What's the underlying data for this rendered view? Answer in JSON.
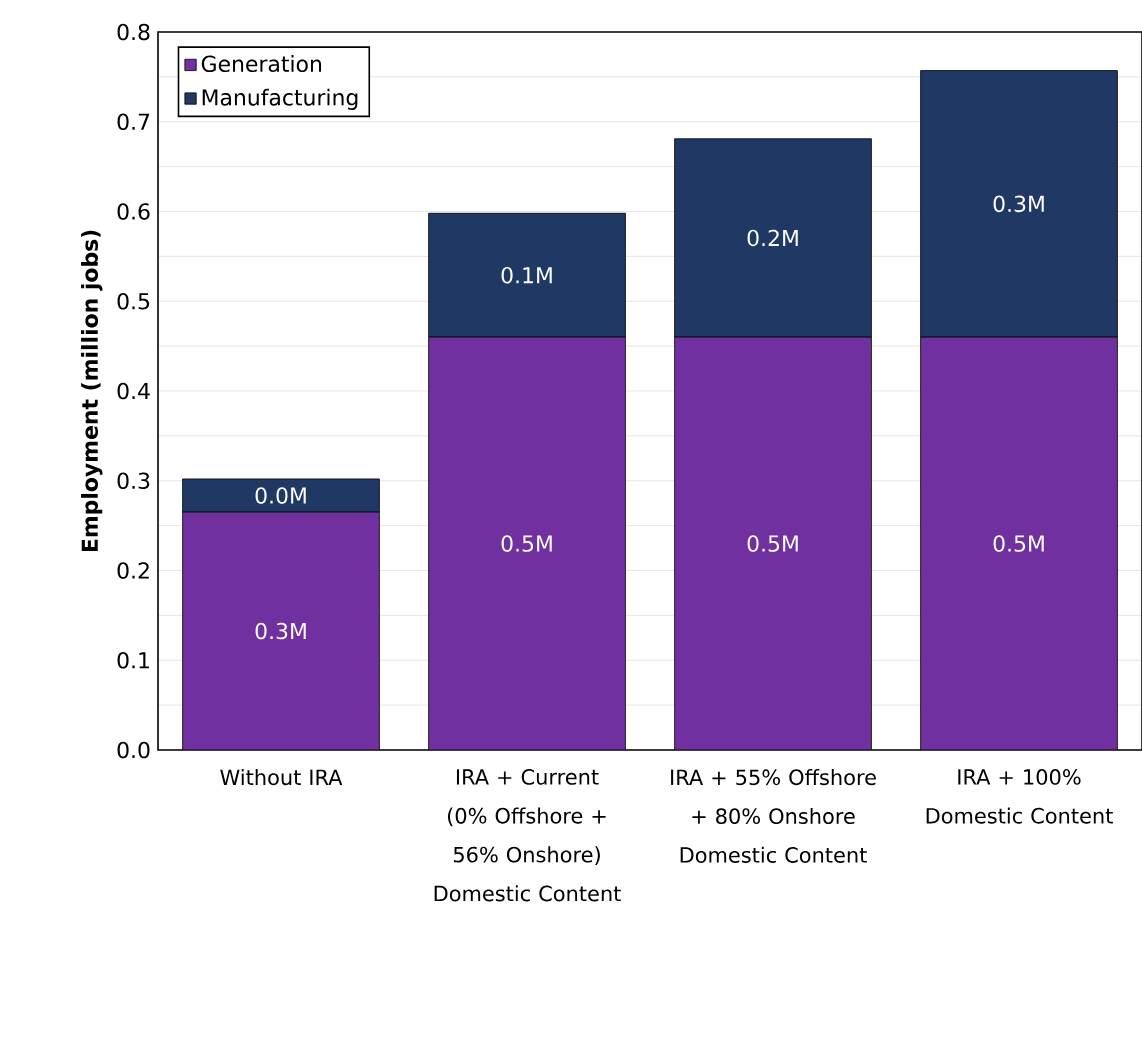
{
  "chart_data": {
    "type": "bar",
    "stacked": true,
    "ylabel": "Employment (million jobs)",
    "categories": [
      "Without IRA",
      "IRA + Current (0% Offshore + 56% Onshore) Domestic Content",
      "IRA + 55% Offshore + 80% Onshore Domestic Content",
      "IRA + 100% Domestic Content"
    ],
    "series": [
      {
        "name": "Generation",
        "color": "#7030a0",
        "values": [
          0.265,
          0.46,
          0.46,
          0.46
        ],
        "value_labels": [
          "0.3M",
          "0.5M",
          "0.5M",
          "0.5M"
        ]
      },
      {
        "name": "Manufacturing",
        "color": "#203864",
        "values": [
          0.037,
          0.138,
          0.221,
          0.297
        ],
        "value_labels": [
          "0.0M",
          "0.1M",
          "0.2M",
          "0.3M"
        ]
      }
    ],
    "ylim": [
      0,
      0.8
    ],
    "yticks": [
      {
        "value": 0,
        "label": "0.0"
      },
      {
        "value": 0.05,
        "label": null
      },
      0.1,
      {
        "value": 0.15,
        "label": null
      },
      0.2,
      {
        "value": 0.25,
        "label": null
      },
      0.3,
      {
        "value": 0.35,
        "label": null
      },
      0.4,
      {
        "value": 0.45,
        "label": null
      },
      0.5,
      {
        "value": 0.55,
        "label": null
      },
      0.6,
      {
        "value": 0.65,
        "label": null
      },
      0.7,
      {
        "value": 0.75,
        "label": null
      },
      0.8
    ],
    "grid": "y",
    "legend": "top left"
  }
}
